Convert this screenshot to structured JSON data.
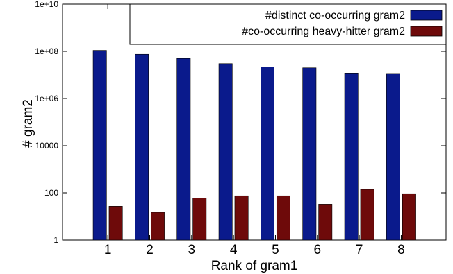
{
  "chart_data": {
    "type": "bar",
    "title": "",
    "xlabel": "Rank of gram1",
    "ylabel": "# gram2",
    "y_scale": "log",
    "ylim": [
      1,
      10000000000
    ],
    "y_ticks": [
      {
        "value": 1,
        "label": "1"
      },
      {
        "value": 100,
        "label": "100"
      },
      {
        "value": 10000,
        "label": "10000"
      },
      {
        "value": 1000000,
        "label": "1e+06"
      },
      {
        "value": 100000000,
        "label": "1e+08"
      },
      {
        "value": 10000000000,
        "label": "1e+10"
      }
    ],
    "categories": [
      "1",
      "2",
      "3",
      "4",
      "5",
      "6",
      "7",
      "8"
    ],
    "grid": false,
    "legend_position": "top-right",
    "series": [
      {
        "name": "#distinct co-occurring gram2",
        "color": "#0a1a8c",
        "values": [
          110000000,
          75000000,
          50000000,
          30000000,
          22000000,
          20000000,
          12000000,
          11500000
        ]
      },
      {
        "name": "#co-occurring heavy-hitter gram2",
        "color": "#6e0a0a",
        "values": [
          27,
          15,
          60,
          75,
          75,
          33,
          140,
          92
        ]
      }
    ]
  }
}
